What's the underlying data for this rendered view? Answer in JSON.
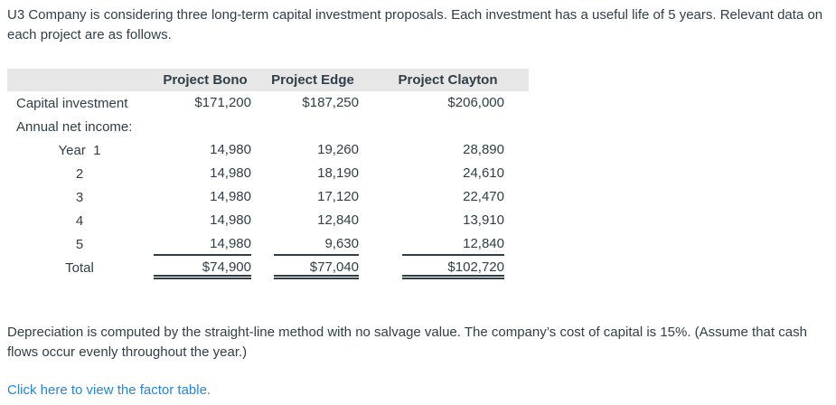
{
  "intro": "U3 Company is considering three long-term capital investment proposals. Each investment has a useful life of 5 years. Relevant data on each project are as follows.",
  "table": {
    "columns": [
      "",
      "Project Bono",
      "Project Edge",
      "Project Clayton"
    ],
    "rows": [
      {
        "label": "Capital investment",
        "values": [
          "$171,200",
          "$187,250",
          "$206,000"
        ]
      },
      {
        "label": "Annual net income:",
        "values": [
          "",
          "",
          ""
        ]
      },
      {
        "label": "Year  1",
        "values": [
          "14,980",
          "19,260",
          "28,890"
        ]
      },
      {
        "label": "2",
        "values": [
          "14,980",
          "18,190",
          "24,610"
        ]
      },
      {
        "label": "3",
        "values": [
          "14,980",
          "17,120",
          "22,470"
        ]
      },
      {
        "label": "4",
        "values": [
          "14,980",
          "12,840",
          "13,910"
        ]
      },
      {
        "label": "5",
        "values": [
          "14,980",
          "9,630",
          "12,840"
        ]
      },
      {
        "label": "Total",
        "values": [
          "$74,900",
          "$77,040",
          "$102,720"
        ]
      }
    ]
  },
  "notes": "Depreciation is computed by the straight-line method with no salvage value. The company’s cost of capital is 15%. (Assume that cash flows occur evenly throughout the year.)",
  "link": {
    "label": "Click here to view the factor table."
  },
  "colors": {
    "text": "#2f3e47",
    "link": "#2287dc",
    "header_bg": "#e7e7e7"
  }
}
